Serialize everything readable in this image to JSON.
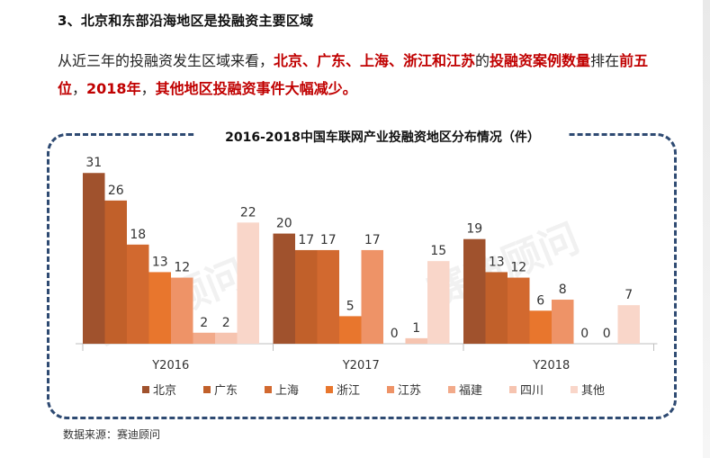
{
  "heading": "3、北京和东部沿海地区是投融资主要区域",
  "paragraph": [
    {
      "text": "从近三年的投融资发生区域来看，",
      "hl": false
    },
    {
      "text": "北京、广东、上海、浙江和江苏",
      "hl": true
    },
    {
      "text": "的",
      "hl": false
    },
    {
      "text": "投融资案例数量",
      "hl": true
    },
    {
      "text": "排在",
      "hl": false
    },
    {
      "text": "前五位",
      "hl": true
    },
    {
      "text": "，",
      "hl": false
    },
    {
      "text": "2018年",
      "hl": true
    },
    {
      "text": "，",
      "hl": false
    },
    {
      "text": "其他地区投融资事件大幅减少。",
      "hl": true
    }
  ],
  "source": "数据来源：赛迪顾问",
  "watermark": "赛迪顾问",
  "chart_data": {
    "type": "bar",
    "title": "2016-2018中国车联网产业投融资地区分布情况（件）",
    "categories": [
      "Y2016",
      "Y2017",
      "Y2018"
    ],
    "series": [
      {
        "name": "北京",
        "color": "#a0522d",
        "values": [
          31,
          20,
          19
        ]
      },
      {
        "name": "广东",
        "color": "#c1602a",
        "values": [
          26,
          17,
          13
        ]
      },
      {
        "name": "上海",
        "color": "#d2692f",
        "values": [
          18,
          17,
          12
        ]
      },
      {
        "name": "浙江",
        "color": "#e8762d",
        "values": [
          13,
          5,
          6
        ]
      },
      {
        "name": "江苏",
        "color": "#ee9367",
        "values": [
          12,
          17,
          8
        ]
      },
      {
        "name": "福建",
        "color": "#f2aa8a",
        "values": [
          2,
          0,
          0
        ]
      },
      {
        "name": "四川",
        "color": "#f6c4b0",
        "values": [
          2,
          1,
          0
        ]
      },
      {
        "name": "其他",
        "color": "#f9d6c9",
        "values": [
          22,
          15,
          7
        ]
      }
    ],
    "xlabel": "",
    "ylabel": "",
    "ylim": [
      0,
      33
    ],
    "grid": false,
    "legend": "bottom"
  }
}
